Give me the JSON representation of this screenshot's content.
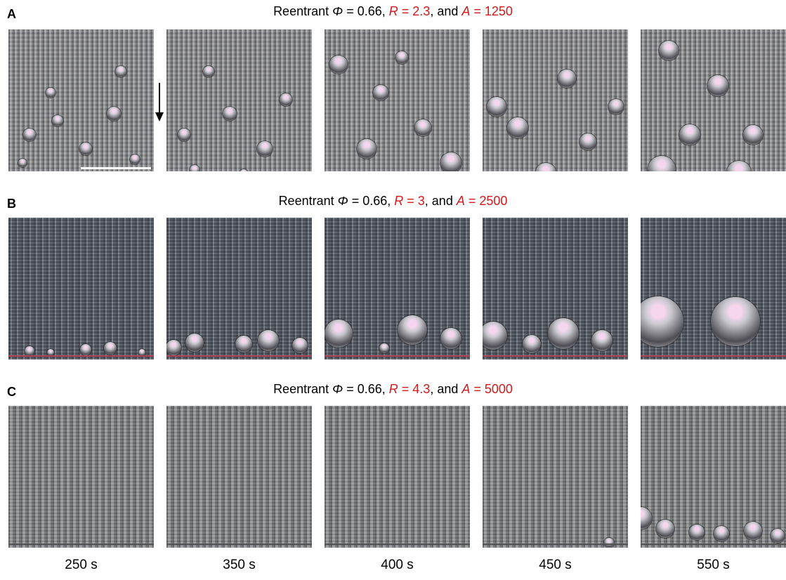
{
  "panels": [
    {
      "label": "A",
      "title": {
        "prefix": "Reentrant ",
        "phi": "Φ",
        "phi_value": " = 0.66, ",
        "r": "R",
        "r_value": " = 2.3",
        "and": ", and ",
        "a": "A",
        "a_value": " = 1250"
      }
    },
    {
      "label": "B",
      "title": {
        "prefix": "Reentrant ",
        "phi": "Φ",
        "phi_value": " = 0.66, ",
        "r": "R",
        "r_value": " = 3",
        "and": ", and ",
        "a": "A",
        "a_value": " = 2500"
      }
    },
    {
      "label": "C",
      "title": {
        "prefix": "Reentrant ",
        "phi": "Φ",
        "phi_value": " = 0.66, ",
        "r": "R",
        "r_value": " = 4.3",
        "and": ", and ",
        "a": "A",
        "a_value": " = 5000"
      }
    }
  ],
  "time_labels": [
    "250 s",
    "350 s",
    "400 s",
    "450 s",
    "550 s"
  ]
}
